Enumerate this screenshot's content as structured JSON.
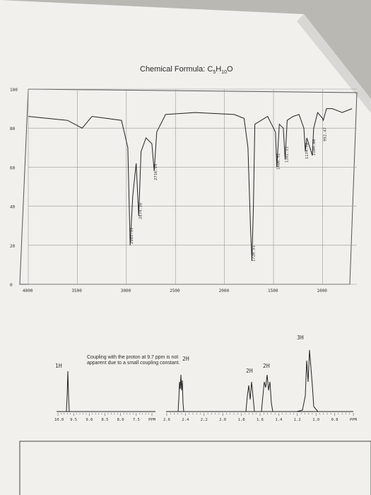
{
  "formula": {
    "prefix": "Chemical Formula: C",
    "c_sub": "5",
    "h": "H",
    "h_sub": "10",
    "o": "O"
  },
  "ir": {
    "y_ticks": [
      "100",
      "80",
      "60",
      "40",
      "20",
      "0"
    ],
    "x_ticks": [
      "4000",
      "3500",
      "3000",
      "2500",
      "2000",
      "1500",
      "1000"
    ],
    "peak_labels": [
      {
        "text": "2961.11",
        "x": 2961
      },
      {
        "text": "2874.38",
        "x": 2874
      },
      {
        "text": "2716.99",
        "x": 2716
      },
      {
        "text": "1720.51",
        "x": 1720
      },
      {
        "text": "1466.92",
        "x": 1466
      },
      {
        "text": "1381.21",
        "x": 1381
      },
      {
        "text": "1174.70",
        "x": 1175
      },
      {
        "text": "1104.60",
        "x": 1104
      },
      {
        "text": "992.47",
        "x": 992
      }
    ]
  },
  "nmr": {
    "integrations": {
      "h1": "1H",
      "h2_left": "2H",
      "h2_mid": "2H",
      "h2_right": "2H",
      "h3": "3H"
    },
    "note": "Coupling with the proton at 9.7 ppm is not apparent due to a small coupling constant.",
    "left_axis": [
      "10.0",
      "9.5",
      "9.0",
      "8.5",
      "8.0",
      "7.5",
      "PPM"
    ],
    "right_axis": [
      "2.6",
      "2.4",
      "2.2",
      "2.0",
      "1.8",
      "1.6",
      "1.4",
      "1.2",
      "1.0",
      "0.8",
      "PPM"
    ]
  },
  "colors": {
    "paper": "#f2f1ee",
    "ink": "#333333",
    "background": "#b9b8b3"
  }
}
